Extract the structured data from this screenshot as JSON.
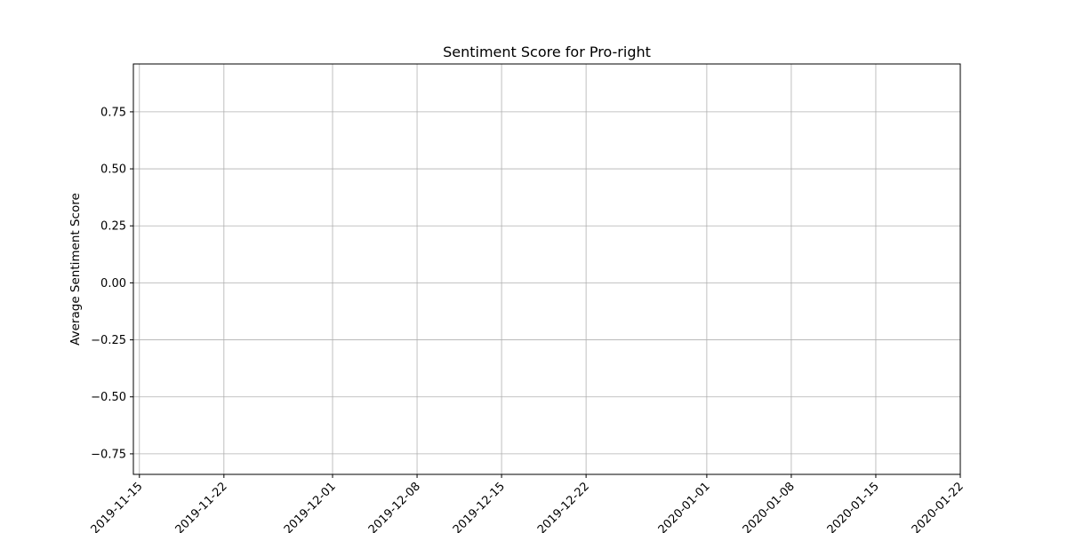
{
  "chart_data": {
    "type": "line",
    "title": "Sentiment Score for Pro-right",
    "xlabel": "",
    "ylabel": "Average Sentiment Score",
    "xlim": [
      "2019-11-14T12:00:00",
      "2020-01-22T00:00:00"
    ],
    "ylim": [
      -0.84,
      0.96
    ],
    "x_ticks": [
      "2019-11-15",
      "2019-11-22",
      "2019-12-01",
      "2019-12-08",
      "2019-12-15",
      "2019-12-22",
      "2020-01-01",
      "2020-01-08",
      "2020-01-15",
      "2020-01-22"
    ],
    "y_ticks": [
      0.75,
      0.5,
      0.25,
      0.0,
      -0.25,
      -0.5,
      -0.75
    ],
    "y_tick_labels": [
      "0.75",
      "0.50",
      "0.25",
      "0.00",
      "−0.25",
      "−0.50",
      "−0.75"
    ],
    "grid": true,
    "series": []
  },
  "colors": {
    "grid": "#b0b0b0",
    "axis": "#000000",
    "background": "#ffffff"
  }
}
